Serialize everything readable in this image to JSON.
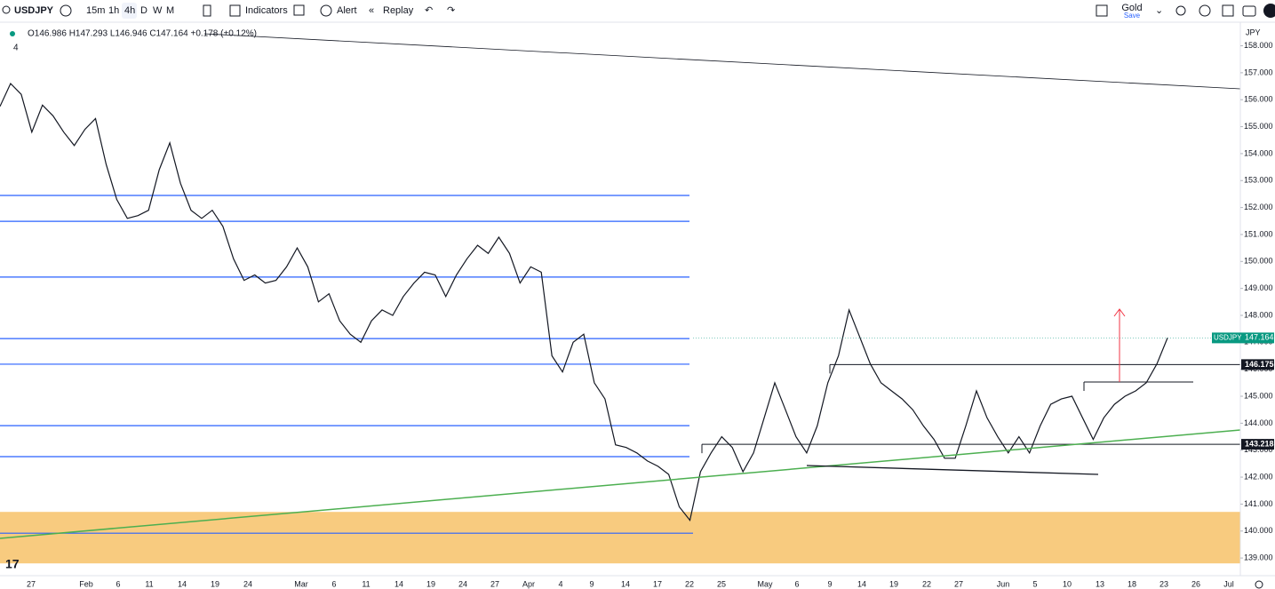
{
  "toolbar": {
    "symbol": "USDJPY",
    "intervals": [
      "15m",
      "1h",
      "4h",
      "D",
      "W",
      "M"
    ],
    "indicators": "Indicators",
    "alert": "Alert",
    "replay": "Replay",
    "layout": "Gold",
    "save": "Save"
  },
  "legend": {
    "ohlc": "O146.986 H147.293 L146.946 C147.164 +0.178 (+0.12%)",
    "count": "4"
  },
  "chart_data": {
    "type": "line",
    "series": [
      {
        "name": "USDJPY",
        "color": "#131722",
        "values": [
          155.75,
          156.6,
          156.2,
          154.8,
          155.8,
          155.4,
          154.8,
          154.3,
          154.9,
          155.3,
          153.6,
          152.3,
          151.6,
          151.7,
          151.9,
          153.4,
          154.4,
          152.9,
          151.9,
          151.6,
          151.9,
          151.3,
          150.1,
          149.3,
          149.5,
          149.2,
          149.3,
          149.8,
          150.5,
          149.8,
          148.5,
          148.8,
          147.8,
          147.3,
          147.0,
          147.8,
          148.2,
          148.0,
          148.7,
          149.2,
          149.6,
          149.5,
          148.7,
          149.5,
          150.1,
          150.6,
          150.3,
          150.9,
          150.3,
          149.2,
          149.8,
          149.6,
          146.5,
          145.9,
          147.0,
          147.3,
          145.5,
          144.9,
          143.2,
          143.1,
          142.9,
          142.6,
          142.4,
          142.1,
          140.9,
          140.4,
          142.2,
          142.9,
          143.5,
          143.1,
          142.2,
          142.9,
          144.2,
          145.5,
          144.5,
          143.5,
          142.9,
          143.9,
          145.5,
          146.5,
          148.2,
          147.2,
          146.2,
          145.5,
          145.2,
          144.9,
          144.5,
          143.9,
          143.4,
          142.7,
          142.7,
          143.9,
          145.2,
          144.2,
          143.5,
          142.9,
          143.5,
          142.9,
          143.9,
          144.7,
          144.9,
          145.0,
          144.2,
          143.4,
          144.2,
          144.7,
          145.0,
          145.2,
          145.5,
          146.2,
          147.164
        ]
      }
    ],
    "currency": "JPY",
    "ylim": [
      138.74,
      158.71
    ],
    "yticks": [
      {
        "value": 139,
        "label": "139.000"
      },
      {
        "value": 140,
        "label": "140.000"
      },
      {
        "value": 141,
        "label": "141.000"
      },
      {
        "value": 142,
        "label": "142.000"
      },
      {
        "value": 143,
        "label": "143.000"
      },
      {
        "value": 144,
        "label": "144.000"
      },
      {
        "value": 145,
        "label": "145.000"
      },
      {
        "value": 146,
        "label": "146.000"
      },
      {
        "value": 147,
        "label": "147.000"
      },
      {
        "value": 148,
        "label": "148.000"
      },
      {
        "value": 149,
        "label": "149.000"
      },
      {
        "value": 150,
        "label": "150.000"
      },
      {
        "value": 151,
        "label": "151.000"
      },
      {
        "value": 152,
        "label": "152.000"
      },
      {
        "value": 153,
        "label": "153.000"
      },
      {
        "value": 154,
        "label": "154.000"
      },
      {
        "value": 155,
        "label": "155.000"
      },
      {
        "value": 156,
        "label": "156.000"
      },
      {
        "value": 157,
        "label": "157.000"
      },
      {
        "value": 158,
        "label": "158.000"
      }
    ],
    "x_labels": [
      "27",
      "Feb",
      "6",
      "11",
      "14",
      "19",
      "24",
      "Mar",
      "6",
      "11",
      "14",
      "19",
      "24",
      "27",
      "Apr",
      "4",
      "9",
      "14",
      "17",
      "22",
      "25",
      "May",
      "6",
      "9",
      "14",
      "19",
      "22",
      "27",
      "Jun",
      "5",
      "10",
      "13",
      "18",
      "23",
      "26",
      "Jul"
    ],
    "levels": {
      "color": "#2962ff",
      "values": [
        152.45,
        151.49,
        149.42,
        147.14,
        146.19,
        143.91,
        142.76,
        139.92
      ]
    },
    "zone": [
      138.8,
      140.71
    ],
    "marked_prices": [
      146.175,
      143.218
    ],
    "last_price": 147.164
  }
}
